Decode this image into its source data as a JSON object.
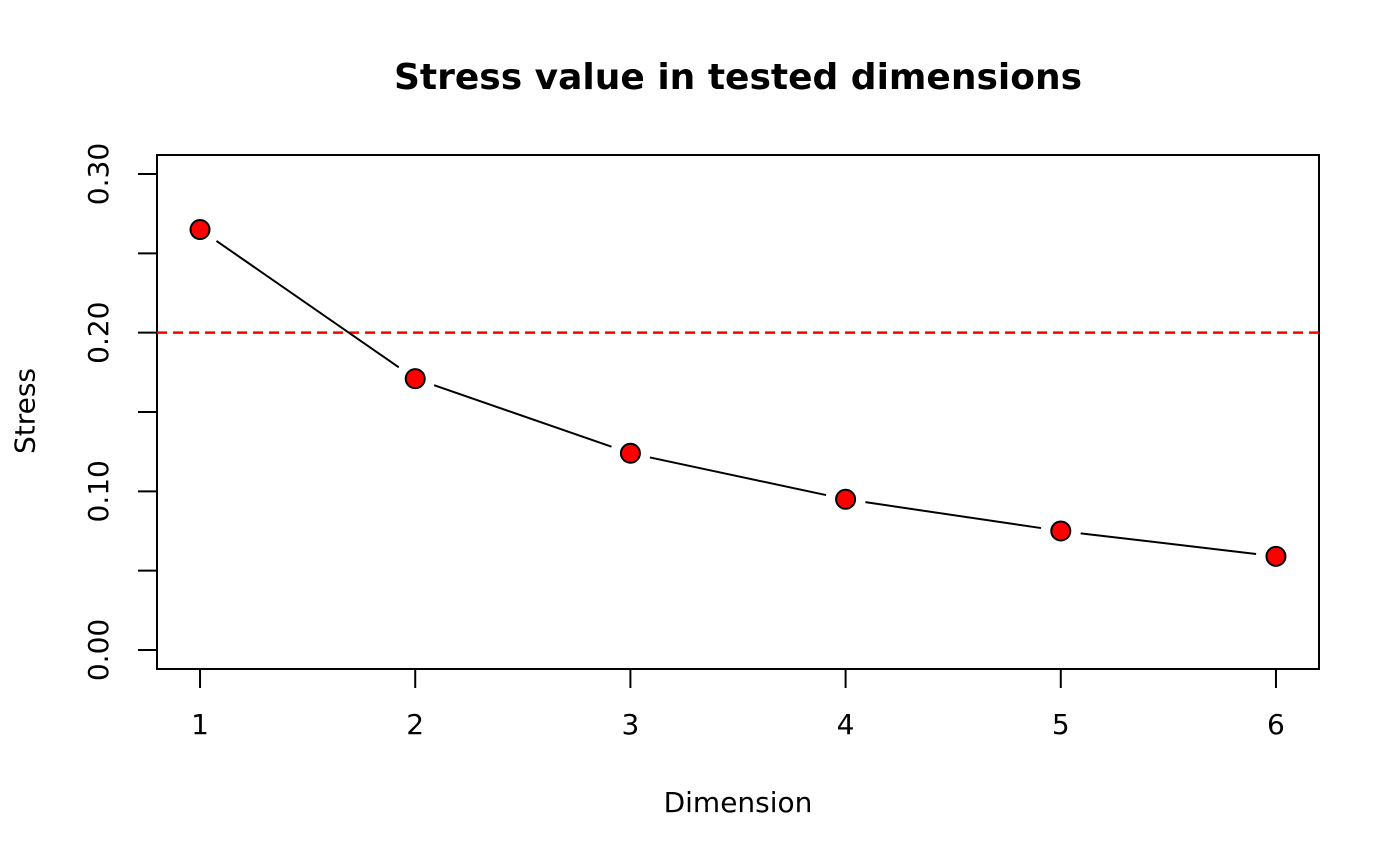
{
  "figure": {
    "title": "Stress value in tested dimensions",
    "background": "#FFFFFF"
  },
  "chart_data": {
    "type": "line",
    "title": "Stress value in tested dimensions",
    "xlabel": "Dimension",
    "ylabel": "Stress",
    "series_name": "Stress",
    "x": [
      1,
      2,
      3,
      4,
      5,
      6
    ],
    "values": [
      0.265,
      0.171,
      0.124,
      0.095,
      0.075,
      0.059
    ],
    "xlim": [
      1,
      6
    ],
    "ylim": [
      0,
      0.3
    ],
    "x_ticks": [
      1,
      2,
      3,
      4,
      5,
      6
    ],
    "x_tick_labels": [
      "1",
      "2",
      "3",
      "4",
      "5",
      "6"
    ],
    "y_ticks": [
      0,
      0.05,
      0.1,
      0.15,
      0.2,
      0.25,
      0.3
    ],
    "y_tick_labels": [
      "0.00",
      "",
      "0.10",
      "",
      "0.20",
      "",
      "0.30"
    ],
    "reference_line": {
      "y": 0.2,
      "color": "#FF0000",
      "style": "dashed"
    },
    "marker": "filled-circle",
    "marker_fill": "#FF0000",
    "marker_stroke": "#000000",
    "line_color": "#000000",
    "axis_color": "#000000",
    "grid": false,
    "legend": "none"
  }
}
